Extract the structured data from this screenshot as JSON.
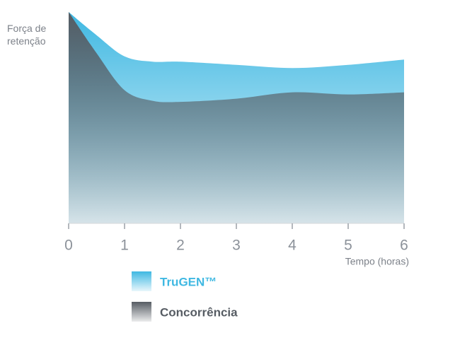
{
  "chart_data": {
    "type": "area",
    "y_label": "Força de retenção",
    "x_label": "Tempo (horas)",
    "x": [
      0,
      0.5,
      1,
      1.5,
      2,
      3,
      4,
      5,
      6
    ],
    "series": [
      {
        "name": "TruGEN™",
        "color": "#3fb8e2",
        "values": [
          100,
          89,
          79,
          76.5,
          76.5,
          75,
          73.5,
          75,
          77.5
        ]
      },
      {
        "name": "Concorrência",
        "color": "#565c63",
        "values": [
          100,
          80.5,
          63,
          58,
          57.5,
          59,
          62,
          61,
          62
        ]
      }
    ],
    "xlim": [
      0,
      6
    ],
    "xticks": [
      0,
      1,
      2,
      3,
      4,
      5,
      6
    ],
    "ylim": [
      0,
      100
    ]
  }
}
